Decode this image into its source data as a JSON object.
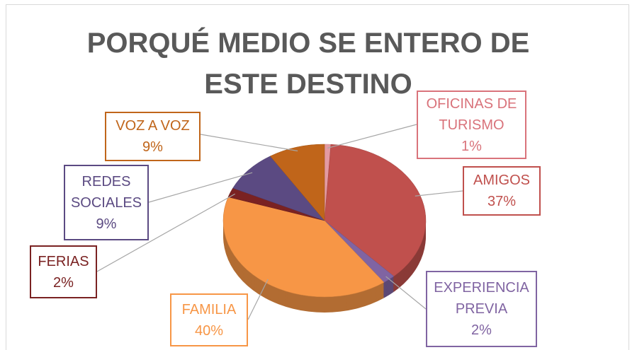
{
  "chart_data": {
    "type": "pie",
    "title": "PORQUÉ MEDIO SE ENTERO DE ESTE DESTINO",
    "categories": [
      "OFICINAS DE TURISMO",
      "AMIGOS",
      "EXPERIENCIA PREVIA",
      "FAMILIA",
      "FERIAS",
      "REDES SOCIALES",
      "VOZ A VOZ"
    ],
    "values": [
      1,
      37,
      2,
      40,
      2,
      9,
      9
    ],
    "value_labels": [
      "1%",
      "37%",
      "2%",
      "40%",
      "2%",
      "9%",
      "9%"
    ],
    "colors": [
      "#e39aa2",
      "#c0504d",
      "#8064a2",
      "#f79646",
      "#7a2222",
      "#5b4a82",
      "#c0651a"
    ]
  }
}
